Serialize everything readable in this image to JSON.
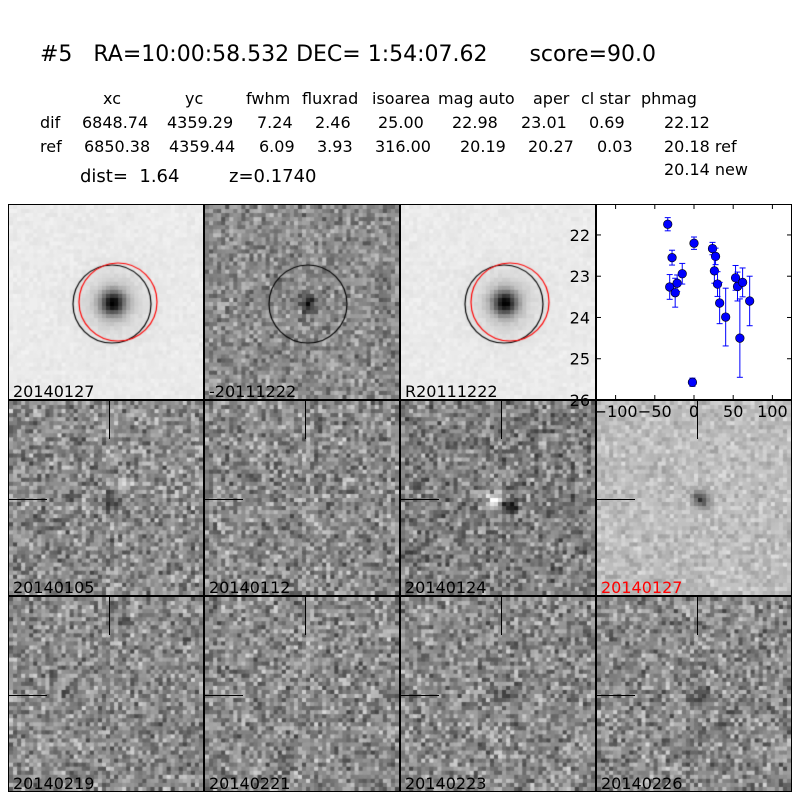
{
  "header": {
    "title": "#5   RA=10:00:58.532 DEC= 1:54:07.62      score=90.0"
  },
  "table": {
    "columns": [
      "xc",
      "yc",
      "fwhm",
      "fluxrad",
      "isoarea",
      "mag auto",
      "aper",
      "cl star",
      "phmag"
    ],
    "rows": [
      {
        "name": "dif",
        "values": [
          "6848.74",
          "4359.29",
          "7.24",
          "2.46",
          "25.00",
          "22.98",
          "23.01",
          "0.69",
          "22.12"
        ]
      },
      {
        "name": "ref",
        "values": [
          "6850.38",
          "4359.44",
          "6.09",
          "3.93",
          "316.00",
          "20.19",
          "20.27",
          "0.03",
          "20.18 ref"
        ]
      }
    ],
    "extra_phmag": "20.14 new",
    "dist": "dist=  1.64",
    "z": "z=0.1740"
  },
  "stamps": [
    {
      "label": "20140127",
      "kind": "ref",
      "color": "#000000"
    },
    {
      "label": "-20111222",
      "kind": "diffref",
      "color": "#000000"
    },
    {
      "label": "R20111222",
      "kind": "ref",
      "color": "#000000"
    },
    {
      "label": "20140105",
      "kind": "dipole",
      "color": "#000000"
    },
    {
      "label": "20140112",
      "kind": "noise",
      "color": "#000000"
    },
    {
      "label": "20140124",
      "kind": "dipole2",
      "color": "#000000"
    },
    {
      "label": "20140127",
      "kind": "source",
      "color": "#ff0000"
    },
    {
      "label": "20140219",
      "kind": "noise",
      "color": "#000000"
    },
    {
      "label": "20140221",
      "kind": "noise",
      "color": "#000000"
    },
    {
      "label": "20140223",
      "kind": "weak",
      "color": "#000000"
    },
    {
      "label": "20140226",
      "kind": "weak",
      "color": "#000000"
    }
  ],
  "chart_data": {
    "type": "scatter",
    "xlim": [
      -125,
      125
    ],
    "ylim": [
      26,
      21.25
    ],
    "y_inverted": true,
    "xticks": [
      -100,
      -50,
      0,
      50,
      100
    ],
    "yticks": [
      22,
      23,
      24,
      25,
      26
    ],
    "marker_color": "#0000ff",
    "x": [
      -33.5,
      -28,
      -31,
      -24,
      -21.5,
      -15,
      0,
      -2,
      23.6,
      27.5,
      26,
      30,
      32.7,
      40.4,
      53,
      55.5,
      62,
      58.5,
      71
    ],
    "y": [
      21.74,
      22.55,
      23.26,
      23.4,
      23.17,
      22.94,
      22.2,
      25.57,
      22.33,
      22.52,
      22.87,
      23.19,
      23.65,
      23.99,
      23.04,
      23.25,
      23.15,
      24.5,
      23.6
    ],
    "yerr": [
      0.16,
      0.18,
      0.3,
      0.35,
      0.2,
      0.25,
      0.15,
      0.1,
      0.15,
      0.2,
      0.3,
      0.3,
      0.5,
      0.7,
      0.3,
      0.35,
      0.35,
      0.95,
      0.6
    ]
  }
}
